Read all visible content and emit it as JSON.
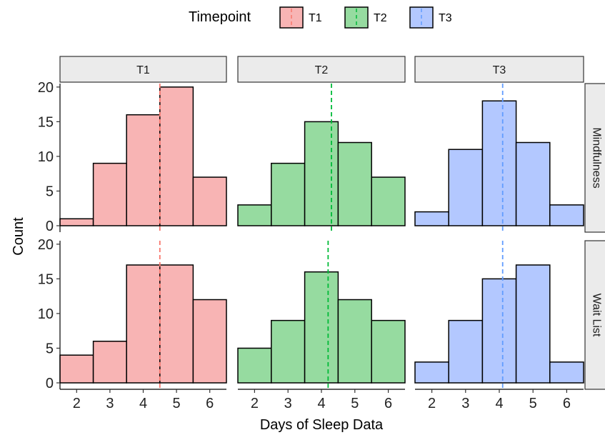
{
  "legend": {
    "title": "Timepoint",
    "items": [
      {
        "label": "T1",
        "fill": "#F8B4B4",
        "line": "#F8766D"
      },
      {
        "label": "T2",
        "fill": "#96DBA0",
        "line": "#00BA38"
      },
      {
        "label": "T3",
        "fill": "#B3C8FF",
        "line": "#619CFF"
      }
    ]
  },
  "chart_data": {
    "type": "bar",
    "subtype": "faceted-histogram",
    "xlabel": "Days of Sleep Data",
    "ylabel": "Count",
    "x_ticks": [
      2,
      3,
      4,
      5,
      6
    ],
    "y_ticks": [
      0,
      5,
      10,
      15,
      20
    ],
    "ylim": [
      0,
      20.5
    ],
    "xlim": [
      1.5,
      6.5
    ],
    "bins": [
      1.5,
      2.5,
      3.5,
      4.5,
      5.5,
      6.5
    ],
    "column_facets": [
      "T1",
      "T2",
      "T3"
    ],
    "row_facets": [
      "Mindfulness",
      "Wait List"
    ],
    "panels": [
      {
        "row": "Mindfulness",
        "col": "T1",
        "values": [
          1,
          9,
          16,
          20,
          7
        ],
        "mean": 4.5
      },
      {
        "row": "Mindfulness",
        "col": "T2",
        "values": [
          3,
          9,
          15,
          12,
          7
        ],
        "mean": 4.3
      },
      {
        "row": "Mindfulness",
        "col": "T3",
        "values": [
          2,
          11,
          18,
          12,
          3
        ],
        "mean": 4.1
      },
      {
        "row": "Wait List",
        "col": "T1",
        "values": [
          4,
          6,
          17,
          17,
          12
        ],
        "mean": 4.5
      },
      {
        "row": "Wait List",
        "col": "T2",
        "values": [
          5,
          9,
          16,
          12,
          9
        ],
        "mean": 4.2
      },
      {
        "row": "Wait List",
        "col": "T3",
        "values": [
          3,
          9,
          15,
          17,
          3
        ],
        "mean": 4.1
      }
    ],
    "legend_position": "top",
    "grid": false
  }
}
